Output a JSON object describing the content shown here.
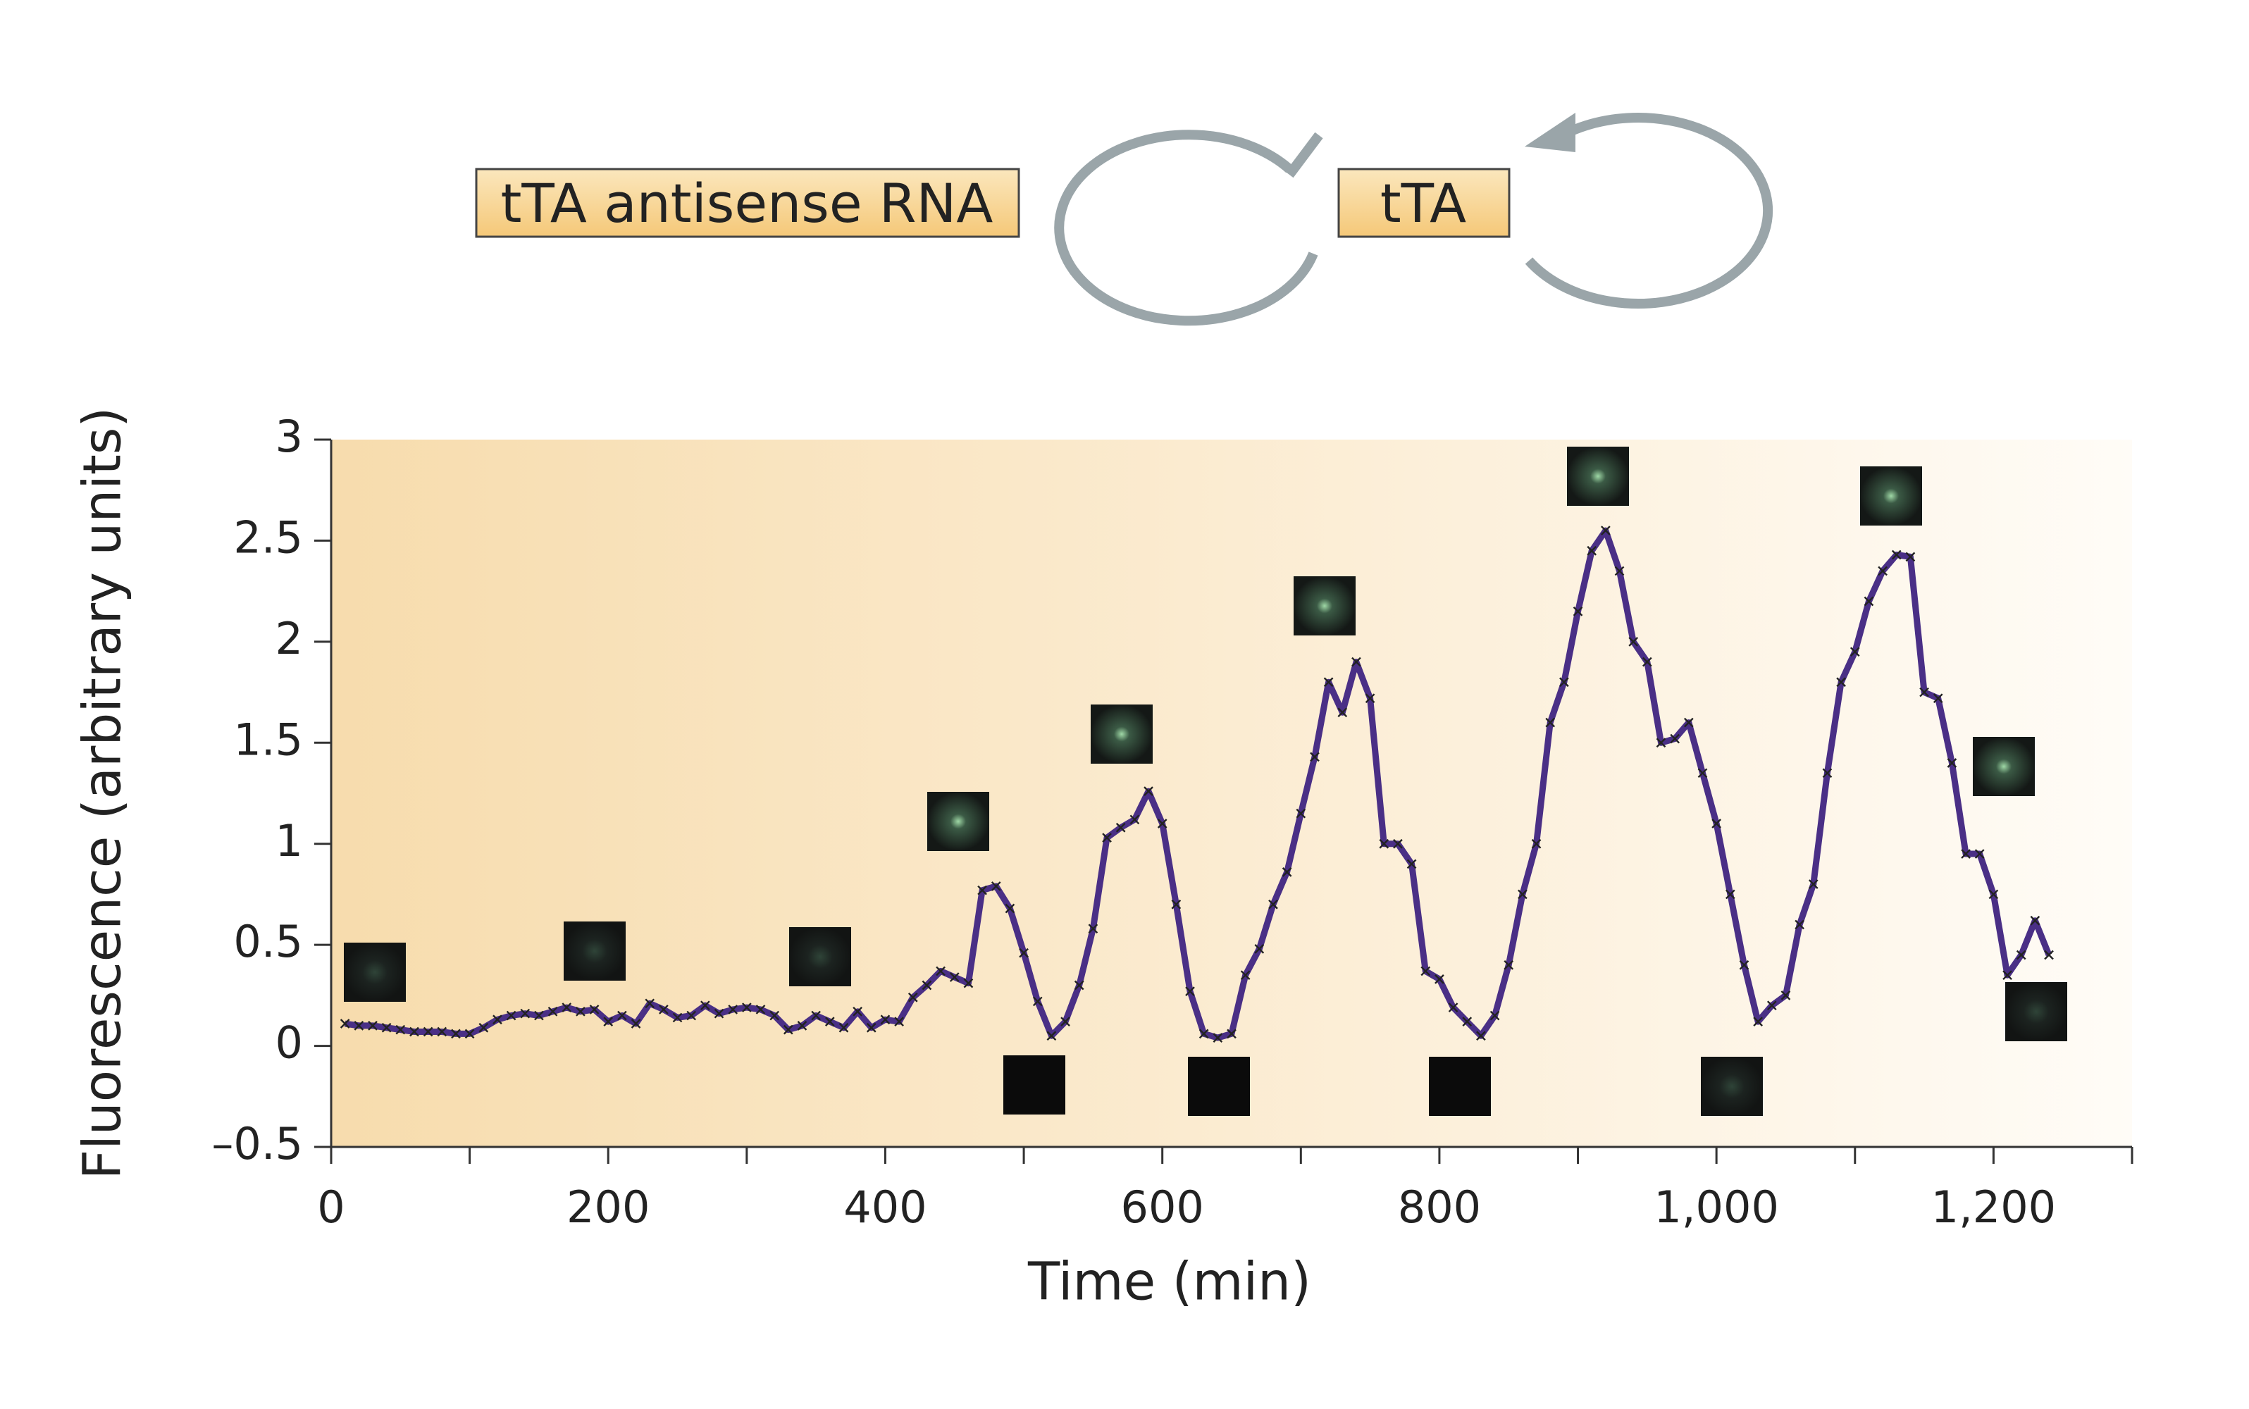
{
  "diagram": {
    "box_left": "tTA antisense RNA",
    "box_right": "tTA"
  },
  "chart_data": {
    "type": "line",
    "xlabel": "Time (min)",
    "ylabel": "Fluorescence (arbitrary units)",
    "xlim": [
      0,
      1300
    ],
    "ylim": [
      -0.5,
      3
    ],
    "xticks": [
      0,
      200,
      400,
      600,
      800,
      {
        "value": 1000,
        "label": "1,000"
      },
      {
        "value": 1200,
        "label": "1,200"
      }
    ],
    "xminorticks": [
      100,
      300,
      500,
      700,
      900,
      1100,
      1300
    ],
    "yticks": [
      {
        "value": -0.5,
        "label": "–0.5"
      },
      0,
      0.5,
      1,
      1.5,
      2,
      2.5,
      3
    ],
    "series": [
      {
        "color": "#4a2f86",
        "x": [
          10,
          20,
          30,
          40,
          50,
          60,
          70,
          80,
          90,
          100,
          110,
          120,
          130,
          140,
          150,
          160,
          170,
          180,
          190,
          200,
          210,
          220,
          230,
          240,
          250,
          260,
          270,
          280,
          290,
          300,
          310,
          320,
          330,
          340,
          350,
          360,
          370,
          380,
          390,
          400,
          410,
          420,
          430,
          440,
          450,
          460,
          470,
          480,
          490,
          500,
          510,
          520,
          530,
          540,
          550,
          560,
          570,
          580,
          590,
          600,
          610,
          620,
          630,
          640,
          650,
          660,
          670,
          680,
          690,
          700,
          710,
          720,
          730,
          740,
          750,
          760,
          770,
          780,
          790,
          800,
          810,
          820,
          830,
          840,
          850,
          860,
          870,
          880,
          890,
          900,
          910,
          920,
          930,
          940,
          950,
          960,
          970,
          980,
          990,
          1000,
          1010,
          1020,
          1030,
          1040,
          1050,
          1060,
          1070,
          1080,
          1090,
          1100,
          1110,
          1120,
          1130,
          1140,
          1150,
          1160,
          1170,
          1180,
          1190,
          1200,
          1210,
          1220,
          1230,
          1240
        ],
        "values": [
          0.11,
          0.1,
          0.1,
          0.09,
          0.08,
          0.07,
          0.07,
          0.07,
          0.06,
          0.06,
          0.09,
          0.13,
          0.15,
          0.16,
          0.15,
          0.17,
          0.19,
          0.17,
          0.18,
          0.12,
          0.15,
          0.11,
          0.21,
          0.18,
          0.14,
          0.15,
          0.2,
          0.16,
          0.18,
          0.19,
          0.18,
          0.15,
          0.08,
          0.1,
          0.15,
          0.12,
          0.09,
          0.17,
          0.09,
          0.13,
          0.12,
          0.24,
          0.3,
          0.37,
          0.34,
          0.31,
          0.77,
          0.79,
          0.68,
          0.46,
          0.22,
          0.05,
          0.12,
          0.3,
          0.58,
          1.03,
          1.08,
          1.12,
          1.26,
          1.1,
          0.7,
          0.27,
          0.06,
          0.04,
          0.06,
          0.35,
          0.48,
          0.7,
          0.86,
          1.15,
          1.43,
          1.8,
          1.65,
          1.9,
          1.72,
          1.0,
          1.0,
          0.9,
          0.37,
          0.33,
          0.19,
          0.12,
          0.05,
          0.15,
          0.4,
          0.75,
          1.0,
          1.6,
          1.8,
          2.15,
          2.45,
          2.55,
          2.35,
          2.0,
          1.9,
          1.5,
          1.52,
          1.6,
          1.35,
          1.1,
          0.75,
          0.4,
          0.12,
          0.2,
          0.25,
          0.6,
          0.8,
          1.35,
          1.8,
          1.95,
          2.2,
          2.35,
          2.43,
          2.42,
          1.75,
          1.72,
          1.4,
          0.95,
          0.95,
          0.75,
          0.35,
          0.45,
          0.62,
          0.45
        ]
      }
    ]
  }
}
